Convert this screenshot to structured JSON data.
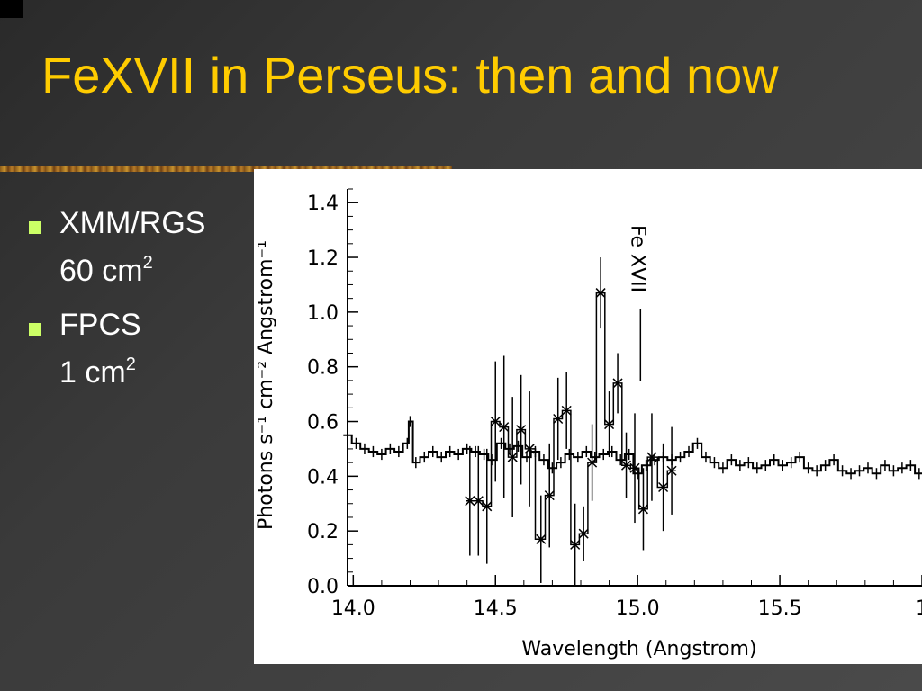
{
  "slide": {
    "title": "FeXVII in Perseus: then and now",
    "bullets": [
      {
        "name": "XMM/RGS",
        "area_value": "60 cm",
        "area_exp": "2"
      },
      {
        "name": "FPCS",
        "area_value": "1 cm",
        "area_exp": "2"
      }
    ],
    "colors": {
      "title": "#ffcc00",
      "bullet_marker": "#ccff66",
      "text": "#ffffff"
    }
  },
  "chart_data": {
    "type": "line",
    "xlabel": "Wavelength (Angstrom)",
    "ylabel": "Photons s⁻¹ cm⁻² Angstrom⁻¹",
    "xlim": [
      13.98,
      16.0
    ],
    "ylim": [
      0.0,
      1.45
    ],
    "xticks": [
      "14.0",
      "14.5",
      "15.0",
      "15.5",
      "1"
    ],
    "yticks": [
      "0.0",
      "0.2",
      "0.4",
      "0.6",
      "0.8",
      "1.0",
      "1.2",
      "1.4"
    ],
    "annotation": "Fe XVII",
    "annotation_x": 15.01,
    "series": [
      {
        "kind": "step",
        "x": [
          13.98,
          14.01,
          14.04,
          14.07,
          14.1,
          14.13,
          14.16,
          14.19,
          14.2,
          14.22,
          14.25,
          14.28,
          14.31,
          14.34,
          14.37,
          14.4,
          14.43,
          14.46,
          14.49,
          14.52,
          14.55,
          14.58,
          14.61,
          14.64,
          14.67,
          14.7,
          14.73,
          14.76,
          14.79,
          14.82,
          14.85,
          14.88,
          14.91,
          14.94,
          14.97,
          15.0,
          15.03,
          15.06,
          15.09,
          15.12,
          15.15,
          15.18,
          15.21,
          15.24,
          15.27,
          15.3,
          15.33,
          15.36,
          15.39,
          15.42,
          15.45,
          15.48,
          15.51,
          15.54,
          15.57,
          15.6,
          15.63,
          15.66,
          15.69,
          15.72,
          15.75,
          15.78,
          15.81,
          15.84,
          15.87,
          15.9,
          15.93,
          15.96,
          15.99
        ],
        "y": [
          0.55,
          0.52,
          0.5,
          0.49,
          0.48,
          0.5,
          0.49,
          0.52,
          0.6,
          0.45,
          0.47,
          0.49,
          0.47,
          0.49,
          0.48,
          0.5,
          0.49,
          0.48,
          0.46,
          0.52,
          0.5,
          0.51,
          0.47,
          0.49,
          0.46,
          0.43,
          0.45,
          0.48,
          0.47,
          0.49,
          0.47,
          0.48,
          0.49,
          0.46,
          0.48,
          0.41,
          0.44,
          0.46,
          0.47,
          0.46,
          0.47,
          0.49,
          0.52,
          0.47,
          0.45,
          0.43,
          0.46,
          0.44,
          0.45,
          0.43,
          0.44,
          0.46,
          0.44,
          0.45,
          0.47,
          0.43,
          0.42,
          0.44,
          0.46,
          0.42,
          0.41,
          0.42,
          0.43,
          0.41,
          0.44,
          0.42,
          0.43,
          0.44,
          0.41
        ]
      },
      {
        "kind": "step-errorbars",
        "marker": "x",
        "x": [
          14.41,
          14.44,
          14.47,
          14.5,
          14.53,
          14.56,
          14.59,
          14.62,
          14.66,
          14.69,
          14.72,
          14.75,
          14.78,
          14.81,
          14.84,
          14.87,
          14.9,
          14.93,
          14.96,
          14.99,
          15.02,
          15.05,
          15.09,
          15.12
        ],
        "y": [
          0.31,
          0.31,
          0.29,
          0.6,
          0.58,
          0.47,
          0.57,
          0.5,
          0.17,
          0.33,
          0.61,
          0.64,
          0.15,
          0.19,
          0.45,
          1.07,
          0.59,
          0.74,
          0.44,
          0.43,
          0.28,
          0.47,
          0.36,
          0.42
        ],
        "err": [
          0.2,
          0.2,
          0.21,
          0.22,
          0.26,
          0.22,
          0.2,
          0.21,
          0.16,
          0.19,
          0.15,
          0.14,
          0.15,
          0.1,
          0.14,
          0.13,
          0.12,
          0.11,
          0.12,
          0.2,
          0.15,
          0.16,
          0.16,
          0.16
        ]
      }
    ]
  }
}
